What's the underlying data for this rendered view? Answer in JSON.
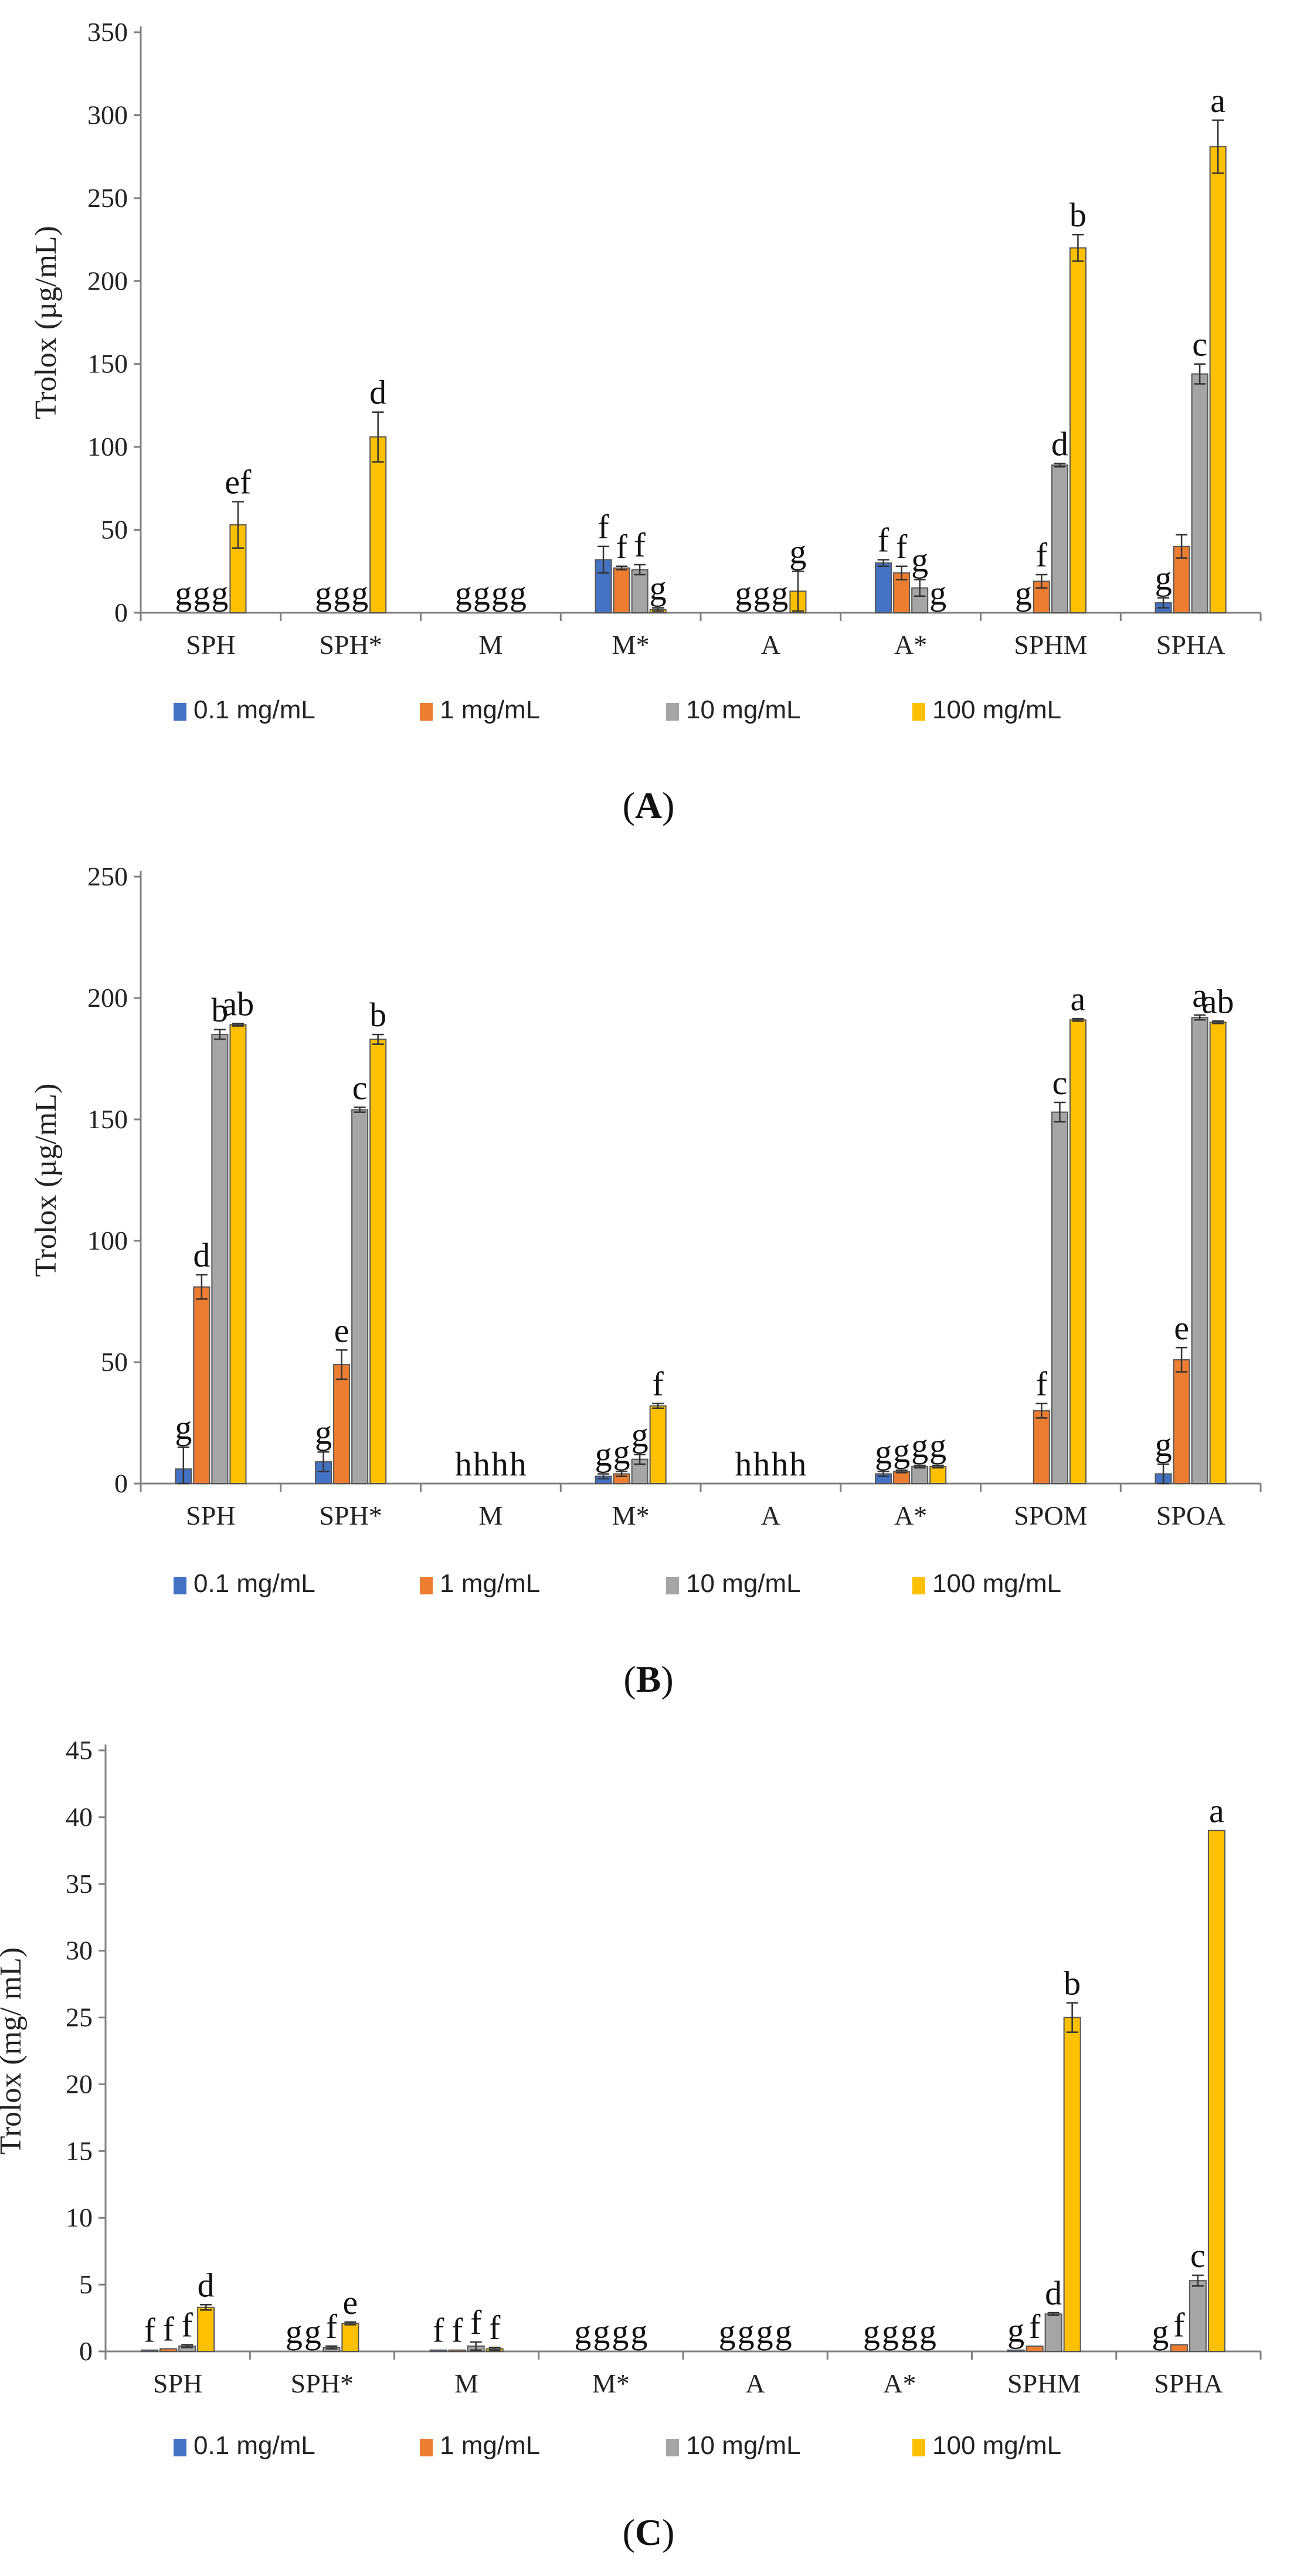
{
  "colors": {
    "0.1 mg/mL": "#4472C4",
    "1 mg/mL": "#ED7D31",
    "10 mg/mL": "#A5A5A5",
    "100 mg/mL": "#FFC000",
    "axis": "#808080",
    "error_bar": "#333333"
  },
  "legend_placement": "bottom-center",
  "chart_data": [
    {
      "type": "bar",
      "panel_label": "A",
      "title": "",
      "xlabel": "",
      "ylabel": "Trolox (µg/mL)",
      "ylim": [
        0,
        350
      ],
      "yticks": [
        0,
        50,
        100,
        150,
        200,
        250,
        300,
        350
      ],
      "grid": false,
      "categories": [
        "SPH",
        "SPH*",
        "M",
        "M*",
        "A",
        "A*",
        "SPHM",
        "SPHA"
      ],
      "series": [
        {
          "name": "0.1 mg/mL",
          "values": [
            0,
            0,
            0,
            32,
            0,
            30,
            0,
            6
          ],
          "errors": [
            0,
            0,
            0,
            8,
            0,
            2,
            0,
            3
          ],
          "letters": [
            "g",
            "g",
            "g",
            "f",
            "g",
            "f",
            "g",
            "g"
          ]
        },
        {
          "name": "1 mg/mL",
          "values": [
            0,
            0,
            0,
            27,
            0,
            24,
            19,
            40
          ],
          "errors": [
            0,
            0,
            0,
            1,
            0,
            4,
            4,
            7
          ],
          "letters": [
            "g",
            "g",
            "g",
            "f",
            "g",
            "f",
            "f",
            ""
          ]
        },
        {
          "name": "10 mg/mL",
          "values": [
            0,
            0,
            0,
            26,
            0,
            15,
            89,
            144
          ],
          "errors": [
            0,
            0,
            0,
            3,
            0,
            5,
            1,
            6
          ],
          "letters": [
            "g",
            "g",
            "g",
            "f",
            "g",
            "g",
            "d",
            "c"
          ]
        },
        {
          "name": "100 mg/mL",
          "values": [
            53,
            106,
            0,
            2,
            13,
            0,
            220,
            281
          ],
          "errors": [
            14,
            15,
            0,
            1,
            12,
            0,
            8,
            16
          ],
          "letters": [
            "ef",
            "d",
            "g",
            "g",
            "g",
            "g",
            "b",
            "a"
          ]
        }
      ]
    },
    {
      "type": "bar",
      "panel_label": "B",
      "title": "",
      "xlabel": "",
      "ylabel": "Trolox (µg/mL)",
      "ylim": [
        0,
        250
      ],
      "yticks": [
        0,
        50,
        100,
        150,
        200,
        250
      ],
      "grid": false,
      "categories": [
        "SPH",
        "SPH*",
        "M",
        "M*",
        "A",
        "A*",
        "SPOM",
        "SPOA"
      ],
      "series": [
        {
          "name": "0.1 mg/mL",
          "values": [
            6,
            9,
            0,
            3,
            0,
            4,
            0,
            4
          ],
          "errors": [
            9,
            4,
            0,
            1,
            0,
            1,
            0,
            4
          ],
          "letters": [
            "g",
            "g",
            "h",
            "g",
            "h",
            "g",
            "",
            "g"
          ]
        },
        {
          "name": "1 mg/mL",
          "values": [
            81,
            49,
            0,
            4,
            0,
            5,
            30,
            51
          ],
          "errors": [
            5,
            6,
            0,
            1,
            0,
            0.5,
            3,
            5
          ],
          "letters": [
            "d",
            "e",
            "h",
            "g",
            "h",
            "g",
            "f",
            "e"
          ]
        },
        {
          "name": "10 mg/mL",
          "values": [
            185,
            154,
            0,
            10,
            0,
            7,
            153,
            192
          ],
          "errors": [
            2,
            1,
            0,
            2,
            0,
            0.5,
            4,
            1
          ],
          "letters": [
            "b",
            "c",
            "h",
            "g",
            "h",
            "g",
            "c",
            "a"
          ]
        },
        {
          "name": "100 mg/mL",
          "values": [
            189,
            183,
            0,
            32,
            0,
            7,
            191,
            190
          ],
          "errors": [
            0.5,
            2,
            0,
            1,
            0,
            0.5,
            0.5,
            0.5
          ],
          "letters": [
            "ab",
            "b",
            "h",
            "f",
            "h",
            "g",
            "a",
            "ab"
          ]
        }
      ]
    },
    {
      "type": "bar",
      "panel_label": "C",
      "title": "",
      "xlabel": "",
      "ylabel": "Trolox (mg/ mL)",
      "ylim": [
        0,
        45
      ],
      "yticks": [
        0,
        5,
        10,
        15,
        20,
        25,
        30,
        35,
        40,
        45
      ],
      "grid": false,
      "categories": [
        "SPH",
        "SPH*",
        "M",
        "M*",
        "A",
        "A*",
        "SPHM",
        "SPHA"
      ],
      "series": [
        {
          "name": "0.1 mg/mL",
          "values": [
            0.1,
            0,
            0.1,
            0,
            0,
            0,
            0.1,
            0
          ],
          "errors": [
            0,
            0,
            0,
            0,
            0,
            0,
            0,
            0
          ],
          "letters": [
            "f",
            "g",
            "f",
            "g",
            "g",
            "g",
            "g",
            "g"
          ]
        },
        {
          "name": "1 mg/mL",
          "values": [
            0.2,
            0,
            0.1,
            0,
            0,
            0,
            0.4,
            0.5
          ],
          "errors": [
            0,
            0,
            0,
            0,
            0,
            0,
            0,
            0
          ],
          "letters": [
            "f",
            "g",
            "f",
            "g",
            "g",
            "g",
            "f",
            "f"
          ]
        },
        {
          "name": "10 mg/mL",
          "values": [
            0.4,
            0.3,
            0.4,
            0,
            0,
            0,
            2.8,
            5.3
          ],
          "errors": [
            0.1,
            0.1,
            0.3,
            0,
            0,
            0,
            0.1,
            0.4
          ],
          "letters": [
            "f",
            "f",
            "f",
            "g",
            "g",
            "g",
            "d",
            "c"
          ]
        },
        {
          "name": "100 mg/mL",
          "values": [
            3.3,
            2.1,
            0.2,
            0,
            0,
            0,
            25,
            39
          ],
          "errors": [
            0.2,
            0.1,
            0.1,
            0,
            0,
            0,
            1.1,
            0
          ],
          "letters": [
            "d",
            "e",
            "f",
            "g",
            "g",
            "g",
            "b",
            "a"
          ]
        }
      ]
    }
  ]
}
